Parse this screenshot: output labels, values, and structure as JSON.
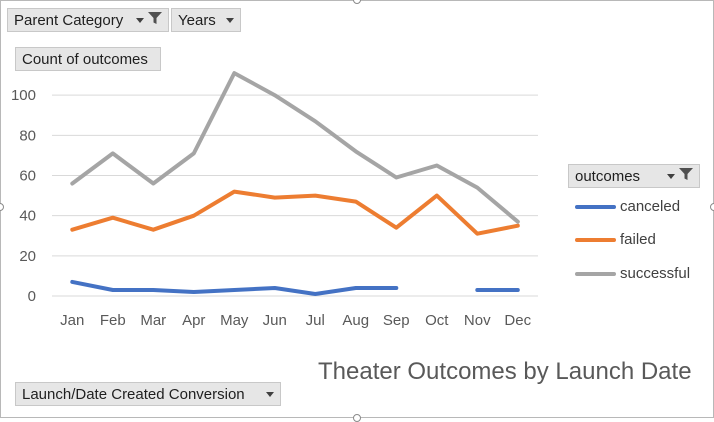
{
  "controls": {
    "parent_category_label": "Parent Category",
    "years_label": "Years",
    "y_field_label": "Count of outcomes",
    "legend_field_label": "outcomes",
    "x_field_label": "Launch/Date Created Conversion"
  },
  "chart_data": {
    "type": "line",
    "title": "Theater Outcomes by Launch Date",
    "categories": [
      "Jan",
      "Feb",
      "Mar",
      "Apr",
      "May",
      "Jun",
      "Jul",
      "Aug",
      "Sep",
      "Oct",
      "Nov",
      "Dec"
    ],
    "ylim": [
      0,
      120
    ],
    "yticks": [
      0,
      20,
      40,
      60,
      80,
      100
    ],
    "grid": true,
    "legend_position": "right",
    "series": [
      {
        "name": "canceled",
        "color": "#4472c4",
        "values": [
          7,
          3,
          3,
          2,
          3,
          4,
          1,
          4,
          4,
          null,
          3,
          3
        ]
      },
      {
        "name": "failed",
        "color": "#ed7d31",
        "values": [
          33,
          39,
          33,
          40,
          52,
          49,
          50,
          47,
          34,
          50,
          31,
          35
        ]
      },
      {
        "name": "successful",
        "color": "#a5a5a5",
        "values": [
          56,
          71,
          56,
          71,
          111,
          100,
          87,
          72,
          59,
          65,
          54,
          37
        ]
      }
    ]
  }
}
